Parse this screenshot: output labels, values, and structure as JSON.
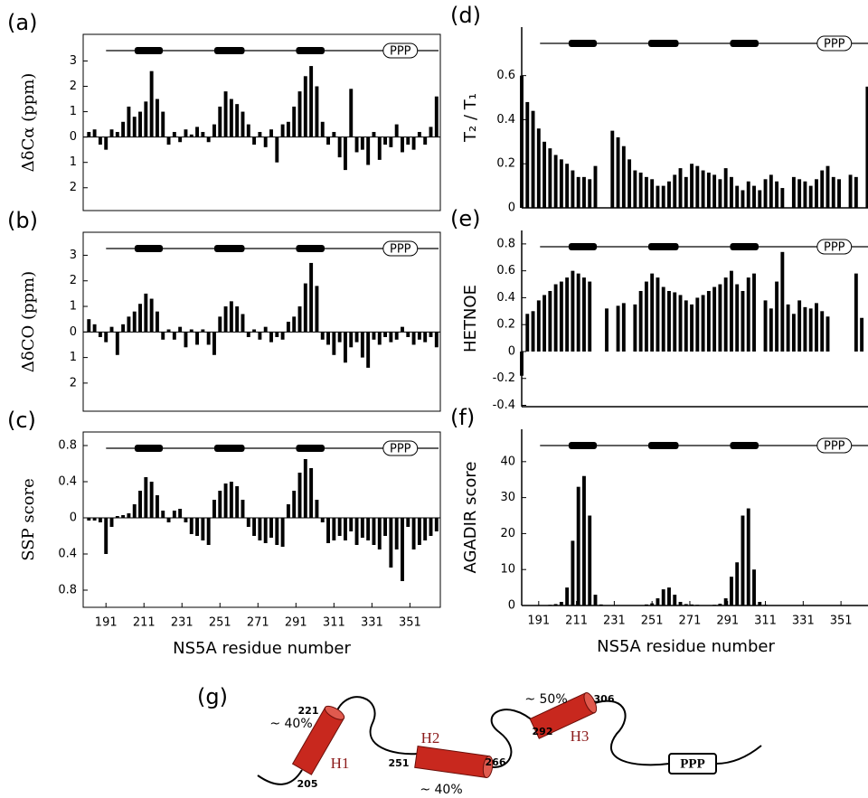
{
  "chart_data": [
    {
      "type": "bar",
      "panel": "(a)",
      "ylabel": "ΔδCα (ppm)",
      "topology_label": "PPP",
      "color": "#000000",
      "x": [
        182,
        185,
        188,
        191,
        194,
        197,
        200,
        203,
        206,
        209,
        212,
        215,
        218,
        221,
        224,
        227,
        230,
        233,
        236,
        239,
        242,
        245,
        248,
        251,
        254,
        257,
        260,
        263,
        266,
        269,
        272,
        275,
        278,
        281,
        284,
        287,
        290,
        293,
        296,
        299,
        302,
        305,
        308,
        311,
        314,
        317,
        320,
        323,
        326,
        329,
        332,
        335,
        338,
        341,
        344,
        347,
        350,
        353,
        356,
        359,
        362,
        365
      ],
      "values": [
        0.2,
        0.3,
        -0.3,
        -0.5,
        0.3,
        0.2,
        0.6,
        1.2,
        0.8,
        1.0,
        1.4,
        2.6,
        1.5,
        1.0,
        -0.3,
        0.2,
        -0.2,
        0.3,
        0.1,
        0.4,
        0.2,
        -0.2,
        0.5,
        1.2,
        1.8,
        1.5,
        1.3,
        1.0,
        0.5,
        -0.3,
        0.2,
        -0.4,
        0.3,
        -1.0,
        0.5,
        0.6,
        1.2,
        1.8,
        2.4,
        2.8,
        2.0,
        0.6,
        -0.3,
        0.2,
        -0.8,
        -1.3,
        1.9,
        -0.6,
        -0.5,
        -1.1,
        0.2,
        -0.9,
        -0.3,
        -0.4,
        0.5,
        -0.6,
        -0.3,
        -0.5,
        0.2,
        -0.3,
        0.4,
        1.6
      ],
      "xlim": [
        179,
        367
      ],
      "ylim": [
        -2.9,
        4.05
      ],
      "yticks": [
        3,
        2,
        1,
        0,
        {
          "value": -1,
          "label": "1"
        },
        {
          "value": -2,
          "label": "2"
        }
      ]
    },
    {
      "type": "bar",
      "panel": "(b)",
      "ylabel": "ΔδCO (ppm)",
      "topology_label": "PPP",
      "color": "#000000",
      "x": [
        182,
        185,
        188,
        191,
        194,
        197,
        200,
        203,
        206,
        209,
        212,
        215,
        218,
        221,
        224,
        227,
        230,
        233,
        236,
        239,
        242,
        245,
        248,
        251,
        254,
        257,
        260,
        263,
        266,
        269,
        272,
        275,
        278,
        281,
        284,
        287,
        290,
        293,
        296,
        299,
        302,
        305,
        308,
        311,
        314,
        317,
        320,
        323,
        326,
        329,
        332,
        335,
        338,
        341,
        344,
        347,
        350,
        353,
        356,
        359,
        362,
        365
      ],
      "values": [
        0.5,
        0.3,
        -0.2,
        -0.4,
        0.2,
        -0.9,
        0.3,
        0.6,
        0.8,
        1.1,
        1.5,
        1.3,
        0.8,
        -0.3,
        0.1,
        -0.3,
        0.2,
        -0.6,
        0.1,
        -0.5,
        0.1,
        -0.5,
        -0.9,
        0.6,
        1.0,
        1.2,
        1.0,
        0.7,
        -0.2,
        0.1,
        -0.3,
        0.2,
        -0.4,
        -0.2,
        -0.3,
        0.4,
        0.6,
        1.0,
        1.9,
        2.7,
        1.8,
        -0.3,
        -0.5,
        -0.9,
        -0.4,
        -1.2,
        -0.6,
        -0.4,
        -1.0,
        -1.4,
        -0.3,
        -0.5,
        -0.2,
        -0.4,
        -0.3,
        0.2,
        -0.2,
        -0.5,
        -0.3,
        -0.4,
        -0.2,
        -0.6
      ],
      "xlim": [
        179,
        367
      ],
      "ylim": [
        -3.1,
        3.9
      ],
      "yticks": [
        3,
        2,
        1,
        0,
        {
          "value": -1,
          "label": "1"
        },
        {
          "value": -2,
          "label": "2"
        }
      ]
    },
    {
      "type": "bar",
      "panel": "(c)",
      "ylabel": "SSP score",
      "xlabel": "NS5A residue number",
      "topology_label": "PPP",
      "color": "#000000",
      "x": [
        182,
        185,
        188,
        191,
        194,
        197,
        200,
        203,
        206,
        209,
        212,
        215,
        218,
        221,
        224,
        227,
        230,
        233,
        236,
        239,
        242,
        245,
        248,
        251,
        254,
        257,
        260,
        263,
        266,
        269,
        272,
        275,
        278,
        281,
        284,
        287,
        290,
        293,
        296,
        299,
        302,
        305,
        308,
        311,
        314,
        317,
        320,
        323,
        326,
        329,
        332,
        335,
        338,
        341,
        344,
        347,
        350,
        353,
        356,
        359,
        362,
        365
      ],
      "values": [
        -0.03,
        -0.03,
        -0.05,
        -0.4,
        -0.1,
        0.02,
        0.03,
        0.05,
        0.15,
        0.3,
        0.45,
        0.4,
        0.25,
        0.08,
        -0.05,
        0.08,
        0.1,
        -0.05,
        -0.18,
        -0.2,
        -0.25,
        -0.3,
        0.2,
        0.3,
        0.38,
        0.4,
        0.35,
        0.2,
        -0.1,
        -0.2,
        -0.25,
        -0.28,
        -0.22,
        -0.3,
        -0.32,
        0.15,
        0.3,
        0.5,
        0.65,
        0.55,
        0.2,
        -0.05,
        -0.28,
        -0.25,
        -0.2,
        -0.25,
        -0.15,
        -0.3,
        -0.22,
        -0.25,
        -0.3,
        -0.35,
        -0.2,
        -0.55,
        -0.35,
        -0.7,
        -0.1,
        -0.35,
        -0.3,
        -0.25,
        -0.2,
        -0.15
      ],
      "xlim": [
        179,
        367
      ],
      "ylim": [
        -0.99,
        0.95
      ],
      "yticks": [
        0.8,
        0.4,
        0,
        {
          "value": -0.4,
          "label": "0.4"
        },
        {
          "value": -0.8,
          "label": "0.8"
        }
      ],
      "xticks": [
        191,
        211,
        231,
        251,
        271,
        291,
        311,
        331,
        351
      ]
    },
    {
      "type": "bar",
      "panel": "(d)",
      "ylabel": "T₂ / T₁",
      "topology_label": "PPP",
      "color": "#000000",
      "x": [
        182,
        185,
        188,
        191,
        194,
        197,
        200,
        203,
        206,
        209,
        212,
        215,
        218,
        221,
        224,
        227,
        230,
        233,
        236,
        239,
        242,
        245,
        248,
        251,
        254,
        257,
        260,
        263,
        266,
        269,
        272,
        275,
        278,
        281,
        284,
        287,
        290,
        293,
        296,
        299,
        302,
        305,
        308,
        311,
        314,
        317,
        320,
        323,
        326,
        329,
        332,
        335,
        338,
        341,
        344,
        347,
        350,
        353,
        356,
        359,
        362,
        365
      ],
      "values": [
        0.6,
        0.48,
        0.44,
        0.36,
        0.3,
        0.27,
        0.24,
        0.22,
        0.2,
        0.17,
        0.14,
        0.14,
        0.13,
        0.19,
        null,
        null,
        0.35,
        0.32,
        0.28,
        0.22,
        0.17,
        0.16,
        0.14,
        0.13,
        0.1,
        0.1,
        0.12,
        0.15,
        0.18,
        0.14,
        0.2,
        0.19,
        0.17,
        0.16,
        0.15,
        0.13,
        0.18,
        0.14,
        0.1,
        0.08,
        0.12,
        0.1,
        0.08,
        0.13,
        0.15,
        0.12,
        0.09,
        null,
        0.14,
        0.13,
        0.12,
        0.1,
        0.13,
        0.17,
        0.19,
        0.14,
        0.13,
        null,
        0.15,
        0.14,
        null,
        0.55
      ],
      "xlim": [
        182,
        365.3
      ],
      "ylim": [
        0,
        0.82
      ],
      "yticks": [
        0,
        0.2,
        0.4,
        0.6
      ]
    },
    {
      "type": "bar",
      "panel": "(e)",
      "ylabel": "HETNOE",
      "topology_label": "PPP",
      "color": "#000000",
      "x": [
        182,
        185,
        188,
        191,
        194,
        197,
        200,
        203,
        206,
        209,
        212,
        215,
        218,
        221,
        224,
        227,
        230,
        233,
        236,
        239,
        242,
        245,
        248,
        251,
        254,
        257,
        260,
        263,
        266,
        269,
        272,
        275,
        278,
        281,
        284,
        287,
        290,
        293,
        296,
        299,
        302,
        305,
        308,
        311,
        314,
        317,
        320,
        323,
        326,
        329,
        332,
        335,
        338,
        341,
        344,
        347,
        350,
        353,
        356,
        359,
        362,
        365
      ],
      "values": [
        -0.18,
        0.28,
        0.3,
        0.38,
        0.42,
        0.45,
        0.5,
        0.52,
        0.55,
        0.6,
        0.58,
        0.55,
        0.52,
        null,
        null,
        0.32,
        null,
        0.34,
        0.36,
        null,
        0.35,
        0.45,
        0.52,
        0.58,
        0.55,
        0.48,
        0.45,
        0.44,
        0.42,
        0.38,
        0.35,
        0.4,
        0.42,
        0.45,
        0.48,
        0.5,
        0.55,
        0.6,
        0.5,
        0.45,
        0.55,
        0.58,
        null,
        0.38,
        0.32,
        0.52,
        0.74,
        0.35,
        0.28,
        0.38,
        0.33,
        0.32,
        0.36,
        0.3,
        0.26,
        null,
        null,
        null,
        null,
        0.58,
        0.25,
        null
      ],
      "xlim": [
        182,
        365.3
      ],
      "ylim": [
        -0.41,
        0.9
      ],
      "yticks": [
        0.8,
        0.6,
        0.4,
        0.2,
        0,
        -0.2,
        -0.4
      ]
    },
    {
      "type": "bar",
      "panel": "(f)",
      "ylabel": "AGADIR score",
      "xlabel": "NS5A residue number",
      "topology_label": "PPP",
      "color": "#000000",
      "x": [
        182,
        185,
        188,
        191,
        194,
        197,
        200,
        203,
        206,
        209,
        212,
        215,
        218,
        221,
        224,
        227,
        230,
        233,
        236,
        239,
        242,
        245,
        248,
        251,
        254,
        257,
        260,
        263,
        266,
        269,
        272,
        275,
        278,
        281,
        284,
        287,
        290,
        293,
        296,
        299,
        302,
        305,
        308,
        311,
        314,
        317,
        320,
        323,
        326,
        329,
        332,
        335,
        338,
        341,
        344,
        347,
        350,
        353,
        356,
        359,
        362,
        365
      ],
      "values": [
        0,
        0,
        0,
        0,
        0.1,
        0.2,
        0.4,
        1,
        5,
        18,
        33,
        36,
        25,
        3,
        0.3,
        0.1,
        0,
        0,
        0,
        0,
        0,
        0.1,
        0.3,
        0.6,
        2,
        4.5,
        5,
        3,
        1,
        0.4,
        0.3,
        0.2,
        0.1,
        0.1,
        0.2,
        0.5,
        2,
        8,
        12,
        25,
        27,
        10,
        1,
        0.2,
        0,
        0,
        0,
        0,
        0,
        0,
        0,
        0,
        0,
        0,
        0,
        0,
        0,
        0,
        0,
        0,
        0,
        0
      ],
      "xlim": [
        182,
        365.3
      ],
      "ylim": [
        0,
        49
      ],
      "yticks": [
        0,
        10,
        20,
        30,
        40
      ],
      "xticks": [
        191,
        211,
        231,
        251,
        271,
        291,
        311,
        331,
        351
      ]
    }
  ],
  "diagram": {
    "panel": "(g)",
    "h1_pct": "~ 40%",
    "h1_end": "221",
    "h1_start": "205",
    "h1_label": "H1",
    "h2_start": "251",
    "h2_label": "H2",
    "h2_end": "266",
    "h2_pct": "~ 40%",
    "h3_pct": "~ 50%",
    "h3_end": "306",
    "h3_start": "292",
    "h3_label": "H3",
    "ppp": "PPP"
  }
}
